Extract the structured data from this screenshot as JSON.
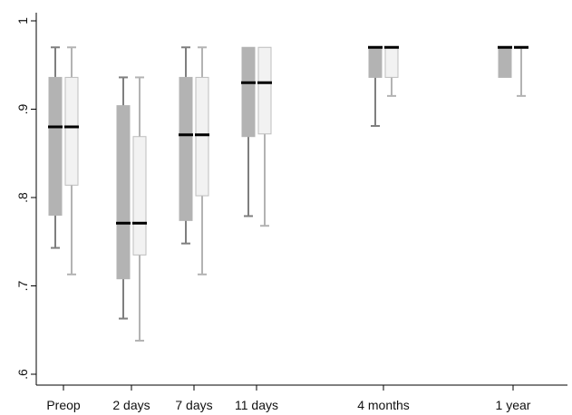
{
  "chart_data": {
    "type": "box",
    "title": "",
    "xlabel": "",
    "ylabel": "",
    "ylim": [
      0.6,
      1.0
    ],
    "yticks": [
      0.6,
      0.7,
      0.8,
      0.9,
      1.0
    ],
    "ytick_labels": [
      ".6",
      ".7",
      ".8",
      ".9",
      "1"
    ],
    "grid": false,
    "legend": false,
    "categories": [
      "Preop",
      "2 days",
      "7 days",
      "11 days",
      "4 months",
      "1 year"
    ],
    "colors": {
      "group_a_fill": "#b3b3b3",
      "group_a_whisker": "#7f7f7f",
      "group_b_fill": "#f2f2f2",
      "group_b_stroke": "#bdbdbd",
      "group_b_whisker": "#b3b3b3",
      "median": "#000000",
      "axis": "#000000"
    },
    "series": [
      {
        "boxes": [
          {
            "min": 0.743,
            "q1": 0.78,
            "median": 0.88,
            "q3": 0.936,
            "max": 0.97
          },
          {
            "min": 0.663,
            "q1": 0.708,
            "median": 0.771,
            "q3": 0.904,
            "max": 0.936
          },
          {
            "min": 0.748,
            "q1": 0.774,
            "median": 0.871,
            "q3": 0.936,
            "max": 0.97
          },
          {
            "min": 0.779,
            "q1": 0.869,
            "median": 0.93,
            "q3": 0.97,
            "max": 0.97
          },
          {
            "min": 0.881,
            "q1": 0.936,
            "median": 0.97,
            "q3": 0.97,
            "max": 0.97
          },
          {
            "min": 0.936,
            "q1": 0.936,
            "median": 0.97,
            "q3": 0.97,
            "max": 0.97
          }
        ]
      },
      {
        "boxes": [
          {
            "min": 0.713,
            "q1": 0.814,
            "median": 0.88,
            "q3": 0.936,
            "max": 0.97
          },
          {
            "min": 0.638,
            "q1": 0.735,
            "median": 0.771,
            "q3": 0.869,
            "max": 0.936
          },
          {
            "min": 0.713,
            "q1": 0.802,
            "median": 0.871,
            "q3": 0.936,
            "max": 0.97
          },
          {
            "min": 0.768,
            "q1": 0.872,
            "median": 0.93,
            "q3": 0.97,
            "max": 0.97
          },
          {
            "min": 0.915,
            "q1": 0.936,
            "median": 0.97,
            "q3": 0.97,
            "max": 0.97
          },
          {
            "min": 0.915,
            "q1": 0.97,
            "median": 0.97,
            "q3": 0.97,
            "max": 0.97
          }
        ]
      }
    ]
  }
}
